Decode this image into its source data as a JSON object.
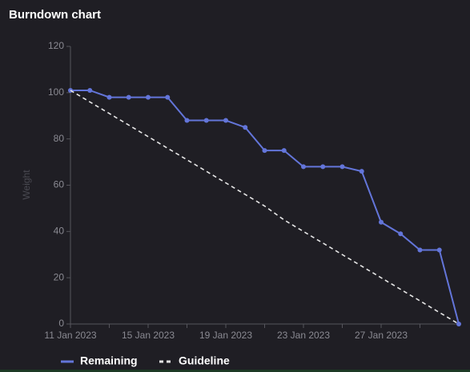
{
  "chart_data": {
    "type": "line",
    "title": "Burndown chart",
    "y_label": "Weight",
    "categories": [
      "11 Jan 2023",
      null,
      null,
      null,
      "15 Jan 2023",
      null,
      null,
      null,
      "19 Jan 2023",
      null,
      null,
      null,
      "23 Jan 2023",
      null,
      null,
      null,
      "27 Jan 2023",
      null,
      null,
      null,
      null
    ],
    "series": [
      {
        "name": "Remaining",
        "color": "#6375d9",
        "style": "solid",
        "markers": true,
        "values": [
          101,
          101,
          98,
          98,
          98,
          98,
          88,
          88,
          88,
          85,
          75,
          75,
          68,
          68,
          68,
          66,
          44,
          39,
          32,
          32,
          0
        ]
      },
      {
        "name": "Guideline",
        "color": "#e6e6e6",
        "style": "dashed",
        "markers": false,
        "values": [
          101,
          96,
          91,
          86,
          81,
          76,
          71,
          66,
          61,
          56,
          51,
          45,
          40,
          35,
          30,
          25,
          20,
          15,
          10,
          5,
          0
        ]
      }
    ],
    "ylim": [
      0,
      120
    ],
    "yticks": [
      0,
      20,
      40,
      60,
      80,
      100,
      120
    ],
    "xtick_every": 2
  }
}
